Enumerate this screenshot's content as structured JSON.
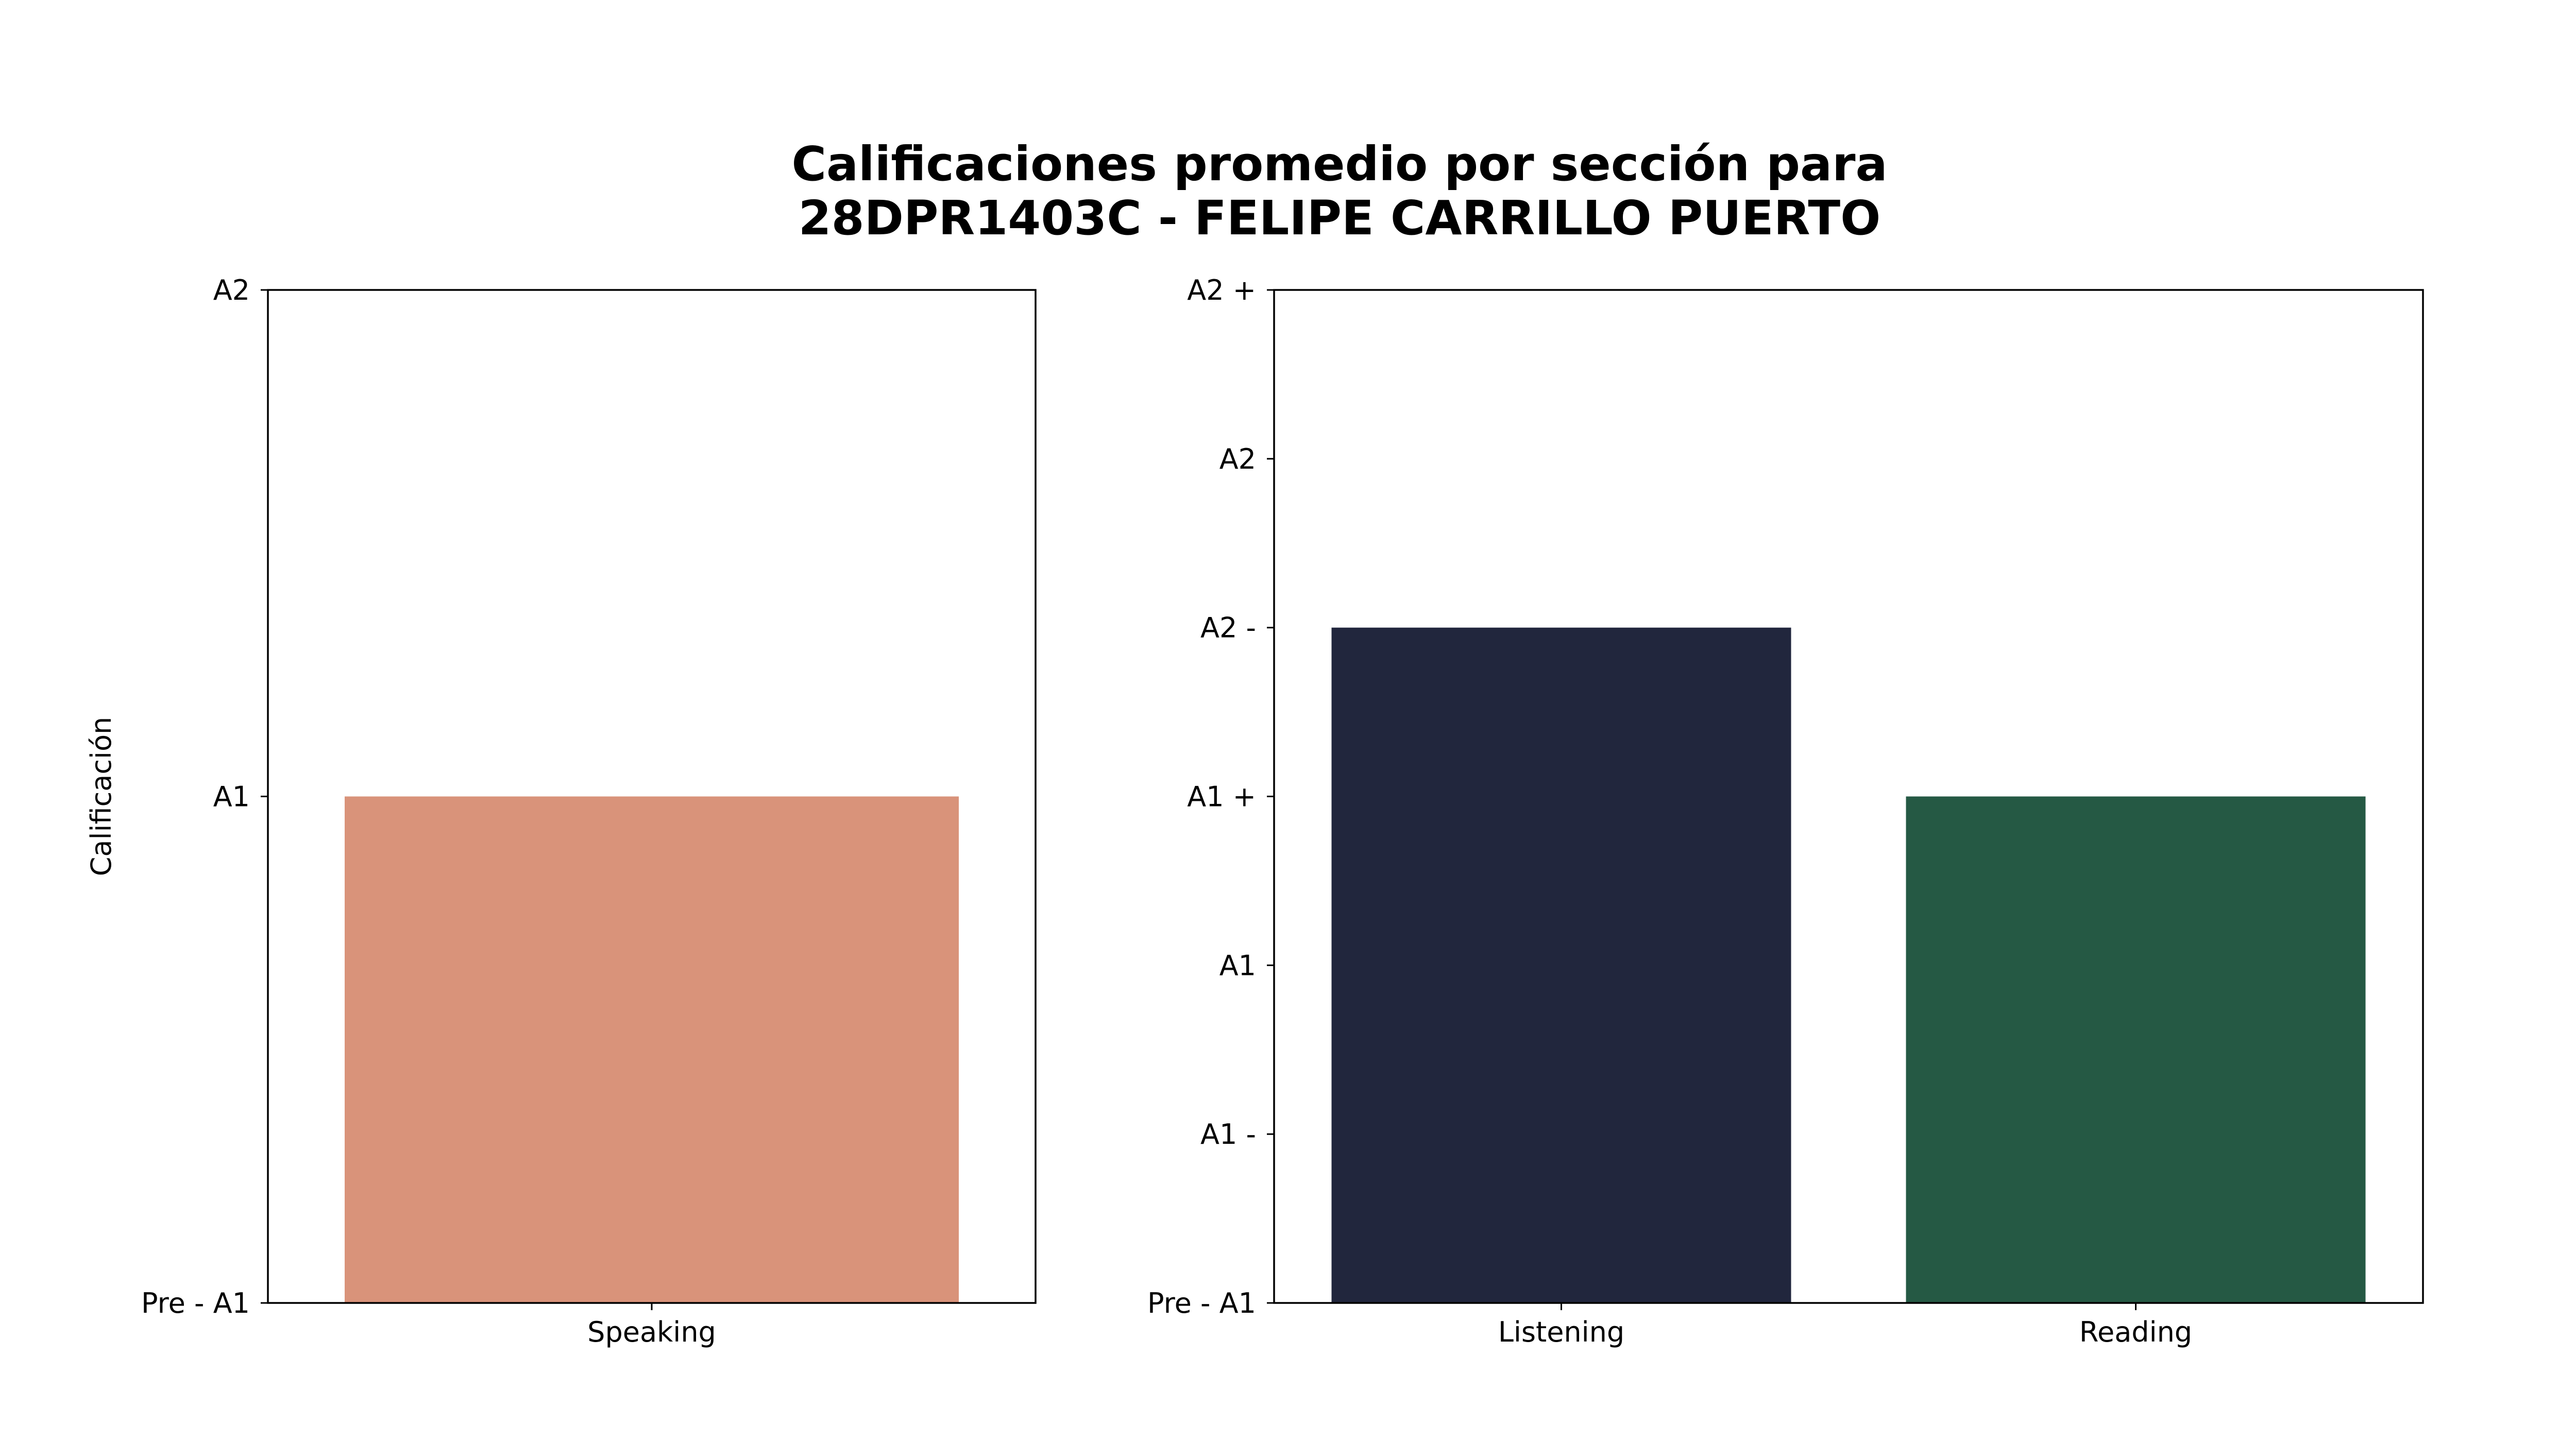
{
  "chart_data": {
    "title_lines": [
      "Calificaciones promedio por sección para",
      "28DPR1403C - FELIPE CARRILLO PUERTO"
    ],
    "panels": [
      {
        "type": "bar",
        "ylabel": "Calificación",
        "categories": [
          "Speaking"
        ],
        "values": [
          1
        ],
        "colors": [
          "#D9937A"
        ],
        "ylim": [
          0,
          2
        ],
        "yticks": [
          {
            "value": 0,
            "label": "Pre - A1"
          },
          {
            "value": 1,
            "label": "A1"
          },
          {
            "value": 2,
            "label": "A2"
          }
        ]
      },
      {
        "type": "bar",
        "ylabel": "",
        "categories": [
          "Listening",
          "Reading"
        ],
        "values": [
          4,
          3
        ],
        "colors": [
          "#21263D",
          "#255944"
        ],
        "ylim": [
          0,
          6
        ],
        "yticks": [
          {
            "value": 0,
            "label": "Pre - A1"
          },
          {
            "value": 1,
            "label": "A1 -"
          },
          {
            "value": 2,
            "label": "A1"
          },
          {
            "value": 3,
            "label": "A1 +"
          },
          {
            "value": 4,
            "label": "A2 -"
          },
          {
            "value": 5,
            "label": "A2"
          },
          {
            "value": 6,
            "label": "A2 +"
          }
        ]
      }
    ]
  }
}
